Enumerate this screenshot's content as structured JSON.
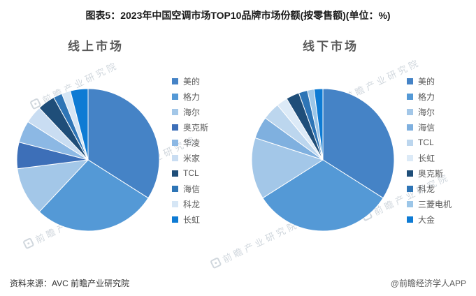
{
  "title": "图表5：2023年中国空调市场TOP10品牌市场份额(按零售额)(单位：%)",
  "footer": {
    "source": "资料来源：AVC 前瞻产业研究院",
    "credit": "@前瞻经济学人APP"
  },
  "watermark": {
    "text": "前瞻产业研究院"
  },
  "chart_data": [
    {
      "type": "pie",
      "title": "线上市场",
      "legend_position": "right",
      "labels": [
        "美的",
        "格力",
        "海尔",
        "奥克斯",
        "华凌",
        "米家",
        "TCL",
        "海信",
        "科龙",
        "长虹"
      ],
      "values": [
        34,
        28,
        11,
        6,
        5,
        4,
        4,
        2,
        2,
        4
      ],
      "colors": [
        "#4583C6",
        "#5499D6",
        "#A3C7E8",
        "#3D6FB8",
        "#8CB8E4",
        "#C9DDF2",
        "#1F4E79",
        "#2E75B6",
        "#D6E6F5",
        "#0E7BD4"
      ],
      "unit": "%"
    },
    {
      "type": "pie",
      "title": "线下市场",
      "legend_position": "right",
      "labels": [
        "美的",
        "格力",
        "海尔",
        "海信",
        "TCL",
        "长虹",
        "奥克斯",
        "科龙",
        "三菱电机",
        "大金"
      ],
      "values": [
        34,
        32,
        14,
        5,
        4,
        2.5,
        3,
        2,
        1.5,
        2
      ],
      "colors": [
        "#4583C6",
        "#5499D6",
        "#A3C7E8",
        "#7FB0DF",
        "#BCD6EE",
        "#DCEAF7",
        "#1F4E79",
        "#2E75B6",
        "#9CC6E8",
        "#0E7BD4"
      ],
      "unit": "%"
    }
  ]
}
